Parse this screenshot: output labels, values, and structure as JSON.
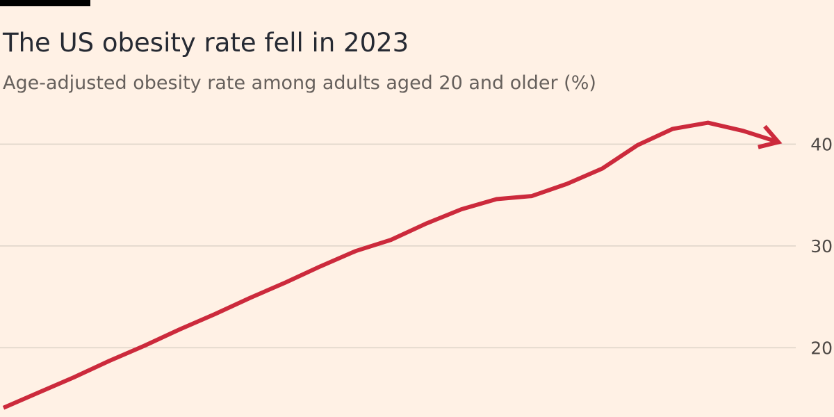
{
  "chart_data": {
    "type": "line",
    "title": "The US obesity rate fell in 2023",
    "subtitle": "Age-adjusted obesity rate among adults aged 20 and older (%)",
    "categories": [
      null,
      null,
      null,
      null,
      null,
      null,
      null,
      null,
      null,
      null,
      null,
      null,
      null,
      null,
      null,
      null,
      null,
      null,
      null,
      null,
      null,
      null,
      null
    ],
    "series": [
      {
        "color": "#cc2a3c",
        "values": [
          14.1,
          15.6,
          17.1,
          18.7,
          20.2,
          21.8,
          23.3,
          24.9,
          26.4,
          28.0,
          29.5,
          30.6,
          32.2,
          33.6,
          34.6,
          34.9,
          36.1,
          37.6,
          39.9,
          41.5,
          42.1,
          41.3,
          40.2
        ]
      }
    ],
    "ylim": [
      13.2,
      44.6
    ],
    "yticks": [
      20,
      30,
      40
    ],
    "grid": true
  }
}
